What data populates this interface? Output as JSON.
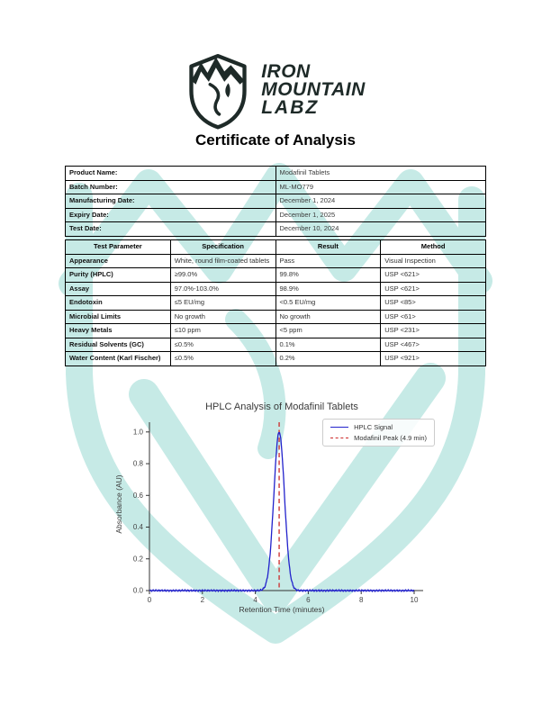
{
  "logo": {
    "line1": "IRON",
    "line2": "MOUNTAIN",
    "line3": "LABZ"
  },
  "doc_title": "Certificate of Analysis",
  "product_info": {
    "rows": [
      {
        "label": "Product Name:",
        "value": "Modafinil Tablets"
      },
      {
        "label": "Batch Number:",
        "value": "ML-MO779"
      },
      {
        "label": "Manufacturing Date:",
        "value": "December 1, 2024"
      },
      {
        "label": "Expiry Date:",
        "value": "December 1, 2025"
      },
      {
        "label": "Test Date:",
        "value": "December 10, 2024"
      }
    ]
  },
  "test_table": {
    "headers": [
      "Test Parameter",
      "Specification",
      "Result",
      "Method"
    ],
    "rows": [
      {
        "param": "Appearance",
        "spec": "White, round film-coated tablets",
        "result": "Pass",
        "method": "Visual Inspection"
      },
      {
        "param": "Purity (HPLC)",
        "spec": "≥99.0%",
        "result": "99.8%",
        "method": "USP <621>"
      },
      {
        "param": "Assay",
        "spec": "97.0%-103.0%",
        "result": "98.9%",
        "method": "USP <621>"
      },
      {
        "param": "Endotoxin",
        "spec": "≤5 EU/mg",
        "result": "<0.5 EU/mg",
        "method": "USP <85>"
      },
      {
        "param": "Microbial Limits",
        "spec": "No growth",
        "result": "No growth",
        "method": "USP <61>"
      },
      {
        "param": "Heavy Metals",
        "spec": "≤10 ppm",
        "result": "<5 ppm",
        "method": "USP <231>"
      },
      {
        "param": "Residual Solvents (GC)",
        "spec": "≤0.5%",
        "result": "0.1%",
        "method": "USP <467>"
      },
      {
        "param": "Water Content (Karl Fischer)",
        "spec": "≤0.5%",
        "result": "0.2%",
        "method": "USP <921>"
      }
    ]
  },
  "chart_data": {
    "type": "line",
    "title": "HPLC Analysis of Modafinil Tablets",
    "xlabel": "Retention Time (minutes)",
    "ylabel": "Absorbance (AU)",
    "xlim": [
      0,
      10
    ],
    "ylim": [
      0,
      1.05
    ],
    "x_ticks": [
      0,
      2,
      4,
      6,
      8,
      10
    ],
    "y_ticks": [
      0.0,
      0.2,
      0.4,
      0.6,
      0.8,
      1.0
    ],
    "grid": false,
    "legend_position": "upper right",
    "series": [
      {
        "name": "HPLC Signal",
        "color": "#2222cc",
        "shape": "gaussian_peak",
        "baseline": 0.0,
        "noise_amplitude": 0.004,
        "peak_center": 4.9,
        "peak_sigma": 0.2,
        "peak_amplitude": 1.0
      }
    ],
    "annotations": [
      {
        "name": "Modafinil Peak (4.9 min)",
        "type": "vline",
        "x": 4.9,
        "color": "#cc2929",
        "style": "dashed"
      }
    ]
  },
  "colors": {
    "watermark": "#c3e9e5",
    "logo_ink": "#1e2a28",
    "signal_line": "#2222cc",
    "peak_line": "#cc2929",
    "axis": "#333333",
    "tick_text": "#444444"
  }
}
